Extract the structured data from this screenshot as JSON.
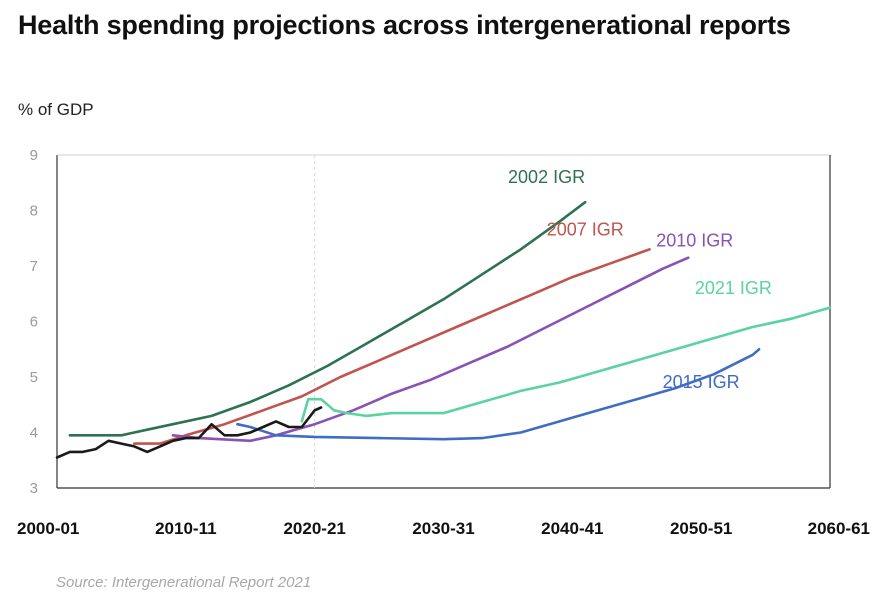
{
  "title": "Health spending projections across intergenerational reports",
  "unit_label": "% of GDP",
  "source": "Source: Intergenerational Report 2021",
  "chart_data": {
    "type": "line",
    "title": "Health spending projections across intergenerational reports",
    "ylabel": "% of GDP",
    "xlabel": "",
    "ylim": [
      3,
      9
    ],
    "xlim": [
      2000,
      2060
    ],
    "y_ticks": [
      "3",
      "4",
      "5",
      "6",
      "7",
      "8",
      "9"
    ],
    "x_ticks": [
      {
        "label": "2000-01",
        "year": 2000
      },
      {
        "label": "2010-11",
        "year": 2010
      },
      {
        "label": "2020-21",
        "year": 2020
      },
      {
        "label": "2030-31",
        "year": 2030
      },
      {
        "label": "2040-41",
        "year": 2040
      },
      {
        "label": "2050-51",
        "year": 2050
      },
      {
        "label": "2060-61",
        "year": 2060
      }
    ],
    "grid": false,
    "series": [
      {
        "name": "2002 IGR",
        "color": "#2e7350",
        "label_year": 2038,
        "label_value": 8.5,
        "points": [
          [
            2001,
            3.95
          ],
          [
            2005,
            3.95
          ],
          [
            2007,
            4.05
          ],
          [
            2009,
            4.15
          ],
          [
            2012,
            4.3
          ],
          [
            2015,
            4.55
          ],
          [
            2018,
            4.85
          ],
          [
            2021,
            5.2
          ],
          [
            2024,
            5.6
          ],
          [
            2027,
            6.0
          ],
          [
            2030,
            6.4
          ],
          [
            2033,
            6.85
          ],
          [
            2036,
            7.3
          ],
          [
            2039,
            7.8
          ],
          [
            2041,
            8.15
          ]
        ]
      },
      {
        "name": "2007 IGR",
        "color": "#c0544f",
        "label_year": 2041,
        "label_value": 7.55,
        "points": [
          [
            2006,
            3.8
          ],
          [
            2008,
            3.8
          ],
          [
            2010,
            3.95
          ],
          [
            2013,
            4.15
          ],
          [
            2016,
            4.4
          ],
          [
            2019,
            4.65
          ],
          [
            2022,
            5.0
          ],
          [
            2025,
            5.3
          ],
          [
            2028,
            5.6
          ],
          [
            2031,
            5.9
          ],
          [
            2034,
            6.2
          ],
          [
            2037,
            6.5
          ],
          [
            2040,
            6.8
          ],
          [
            2043,
            7.05
          ],
          [
            2046,
            7.3
          ]
        ]
      },
      {
        "name": "2010 IGR",
        "color": "#8a52b3",
        "label_year": 2049.5,
        "label_value": 7.35,
        "points": [
          [
            2009,
            3.95
          ],
          [
            2011,
            3.9
          ],
          [
            2015,
            3.85
          ],
          [
            2017,
            3.95
          ],
          [
            2020,
            4.15
          ],
          [
            2023,
            4.4
          ],
          [
            2026,
            4.7
          ],
          [
            2029,
            4.95
          ],
          [
            2032,
            5.25
          ],
          [
            2035,
            5.55
          ],
          [
            2038,
            5.9
          ],
          [
            2041,
            6.25
          ],
          [
            2044,
            6.6
          ],
          [
            2047,
            6.95
          ],
          [
            2049,
            7.15
          ]
        ]
      },
      {
        "name": "2021 IGR",
        "color": "#5ad3a0",
        "label_year": 2052.5,
        "label_value": 6.5,
        "points": [
          [
            2019,
            4.2
          ],
          [
            2019.5,
            4.6
          ],
          [
            2020.5,
            4.6
          ],
          [
            2021.5,
            4.4
          ],
          [
            2022.5,
            4.35
          ],
          [
            2024,
            4.3
          ],
          [
            2026,
            4.35
          ],
          [
            2028,
            4.35
          ],
          [
            2030,
            4.35
          ],
          [
            2033,
            4.55
          ],
          [
            2036,
            4.75
          ],
          [
            2039,
            4.9
          ],
          [
            2042,
            5.1
          ],
          [
            2045,
            5.3
          ],
          [
            2048,
            5.5
          ],
          [
            2051,
            5.7
          ],
          [
            2054,
            5.9
          ],
          [
            2057,
            6.05
          ],
          [
            2060,
            6.25
          ]
        ]
      },
      {
        "name": "2015 IGR",
        "color": "#3f6cc4",
        "label_year": 2050,
        "label_value": 4.8,
        "points": [
          [
            2014,
            4.15
          ],
          [
            2015,
            4.1
          ],
          [
            2017,
            3.95
          ],
          [
            2020,
            3.92
          ],
          [
            2025,
            3.9
          ],
          [
            2030,
            3.88
          ],
          [
            2033,
            3.9
          ],
          [
            2036,
            4.0
          ],
          [
            2039,
            4.2
          ],
          [
            2042,
            4.4
          ],
          [
            2045,
            4.6
          ],
          [
            2048,
            4.8
          ],
          [
            2051,
            5.05
          ],
          [
            2054,
            5.4
          ],
          [
            2054.5,
            5.5
          ]
        ]
      },
      {
        "name": "",
        "color": "#1a1a1a",
        "label_year": null,
        "label_value": null,
        "points": [
          [
            2000,
            3.55
          ],
          [
            2001,
            3.65
          ],
          [
            2002,
            3.65
          ],
          [
            2003,
            3.7
          ],
          [
            2004,
            3.85
          ],
          [
            2005,
            3.8
          ],
          [
            2006,
            3.75
          ],
          [
            2007,
            3.65
          ],
          [
            2008,
            3.75
          ],
          [
            2009,
            3.85
          ],
          [
            2010,
            3.9
          ],
          [
            2011,
            3.9
          ],
          [
            2012,
            4.15
          ],
          [
            2013,
            3.95
          ],
          [
            2014,
            3.95
          ],
          [
            2015,
            4.0
          ],
          [
            2016,
            4.1
          ],
          [
            2017,
            4.2
          ],
          [
            2018,
            4.1
          ],
          [
            2019,
            4.1
          ],
          [
            2020,
            4.4
          ],
          [
            2020.5,
            4.45
          ]
        ]
      }
    ]
  }
}
